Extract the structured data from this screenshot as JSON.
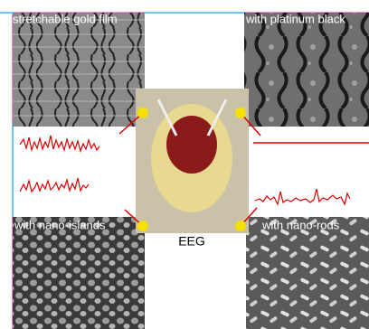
{
  "panels": {
    "top_left": {
      "label": "stretchable gold film"
    },
    "top_right": {
      "label": "with platinum black"
    },
    "bottom_left": {
      "label": "with nano-islands"
    },
    "bottom_right": {
      "label": "with nano-rods"
    }
  },
  "center": {
    "label": "EEG"
  }
}
